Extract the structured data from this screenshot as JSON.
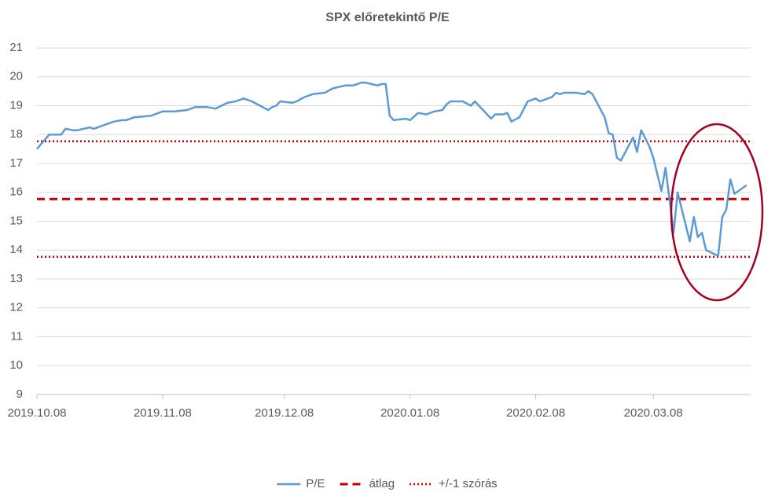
{
  "chart_data": {
    "type": "line",
    "title": "SPX előretekintő P/E",
    "x": [
      "2019.10.08",
      "2019.10.11",
      "2019.10.14",
      "2019.10.15",
      "2019.10.17",
      "2019.10.18",
      "2019.10.21",
      "2019.10.22",
      "2019.10.24",
      "2019.10.27",
      "2019.10.29",
      "2019.10.30",
      "2019.11.01",
      "2019.11.05",
      "2019.11.08",
      "2019.11.11",
      "2019.11.14",
      "2019.11.16",
      "2019.11.19",
      "2019.11.21",
      "2019.11.24",
      "2019.11.26",
      "2019.11.28",
      "2019.11.30",
      "2019.12.02",
      "2019.12.04",
      "2019.12.05",
      "2019.12.06",
      "2019.12.07",
      "2019.12.10",
      "2019.12.11",
      "2019.12.13",
      "2019.12.15",
      "2019.12.18",
      "2019.12.20",
      "2019.12.23",
      "2019.12.25",
      "2019.12.27",
      "2019.12.28",
      "2019.12.31",
      "2020.01.01",
      "2020.01.02",
      "2020.01.03",
      "2020.01.04",
      "2020.01.07",
      "2020.01.08",
      "2020.01.10",
      "2020.01.12",
      "2020.01.14",
      "2020.01.16",
      "2020.01.17",
      "2020.01.18",
      "2020.01.21",
      "2020.01.23",
      "2020.01.24",
      "2020.01.26",
      "2020.01.28",
      "2020.01.29",
      "2020.01.31",
      "2020.02.01",
      "2020.02.02",
      "2020.02.04",
      "2020.02.06",
      "2020.02.08",
      "2020.02.09",
      "2020.02.12",
      "2020.02.13",
      "2020.02.14",
      "2020.02.15",
      "2020.02.18",
      "2020.02.20",
      "2020.02.21",
      "2020.02.22",
      "2020.02.25",
      "2020.02.26",
      "2020.02.27",
      "2020.02.28",
      "2020.02.29",
      "2020.03.03",
      "2020.03.04",
      "2020.03.05",
      "2020.03.07",
      "2020.03.08",
      "2020.03.10",
      "2020.03.11",
      "2020.03.13",
      "2020.03.14",
      "2020.03.17",
      "2020.03.18",
      "2020.03.19",
      "2020.03.20",
      "2020.03.21",
      "2020.03.24",
      "2020.03.25",
      "2020.03.26",
      "2020.03.27",
      "2020.03.28",
      "2020.03.31"
    ],
    "series": [
      {
        "name": "P/E",
        "color": "#5b9bd5",
        "values": [
          17.5,
          18.0,
          18.0,
          18.2,
          18.15,
          18.15,
          18.25,
          18.2,
          18.3,
          18.45,
          18.5,
          18.5,
          18.6,
          18.65,
          18.8,
          18.8,
          18.85,
          18.95,
          18.95,
          18.9,
          19.1,
          19.15,
          19.25,
          19.15,
          19.0,
          18.85,
          18.95,
          19.0,
          19.15,
          19.1,
          19.15,
          19.3,
          19.4,
          19.45,
          19.6,
          19.7,
          19.7,
          19.8,
          19.8,
          19.7,
          19.75,
          19.75,
          18.65,
          18.5,
          18.55,
          18.5,
          18.75,
          18.7,
          18.8,
          18.85,
          19.05,
          19.15,
          19.15,
          19.0,
          19.15,
          18.85,
          18.55,
          18.7,
          18.7,
          18.75,
          18.45,
          18.6,
          19.15,
          19.25,
          19.15,
          19.3,
          19.45,
          19.4,
          19.45,
          19.45,
          19.4,
          19.5,
          19.4,
          18.6,
          18.05,
          18.0,
          17.2,
          17.1,
          17.9,
          17.4,
          18.15,
          17.6,
          17.2,
          16.05,
          16.85,
          14.6,
          16.0,
          14.3,
          15.15,
          14.45,
          14.6,
          14.0,
          13.8,
          15.15,
          15.4,
          16.45,
          15.95,
          16.25
        ]
      }
    ],
    "reference_lines": [
      {
        "name": "átlag",
        "color": "#c00000",
        "style": "dashed",
        "values": [
          15.77
        ]
      },
      {
        "name": "+/-1 szórás",
        "color": "#c00000",
        "style": "dotted",
        "values": [
          17.77,
          13.77
        ]
      }
    ],
    "xlim": [
      "2019.10.08",
      "2020.04.01"
    ],
    "xticks": [
      "2019.10.08",
      "2019.11.08",
      "2019.12.08",
      "2020.01.08",
      "2020.02.08",
      "2020.03.08"
    ],
    "ylim": [
      9,
      21
    ],
    "yticks": [
      9,
      10,
      11,
      12,
      13,
      14,
      15,
      16,
      17,
      18,
      19,
      20,
      21
    ],
    "grid": true
  }
}
